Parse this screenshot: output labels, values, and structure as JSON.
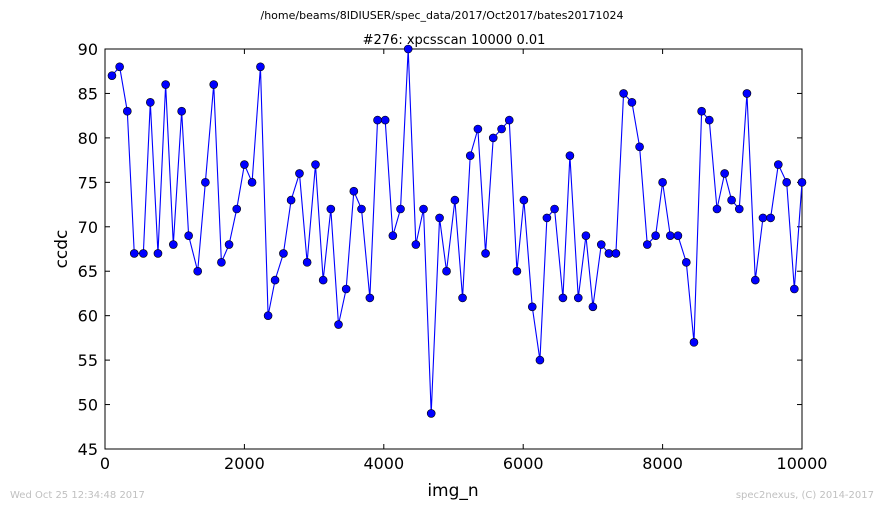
{
  "page": {
    "supertitle": "/home/beams/8IDIUSER/spec_data/2017/Oct2017/bates20171024",
    "footer_left": "Wed Oct 25 12:34:48 2017",
    "footer_right": "spec2nexus, (C) 2014-2017"
  },
  "colors": {
    "series": "#0000ff",
    "axes": "#000000",
    "footer": "#c0c0c0",
    "background": "#ffffff"
  },
  "chart_data": {
    "type": "line",
    "title": "#276: xpcsscan 10000 0.01",
    "xlabel": "img_n",
    "ylabel": "ccdc",
    "xlim": [
      0,
      10000
    ],
    "ylim": [
      45,
      90
    ],
    "xticks": [
      0,
      2000,
      4000,
      6000,
      8000,
      10000
    ],
    "yticks": [
      45,
      50,
      55,
      60,
      65,
      70,
      75,
      80,
      85,
      90
    ],
    "grid": false,
    "legend": "none",
    "markers": "circle",
    "series": [
      {
        "x": [
          100,
          210,
          320,
          420,
          550,
          650,
          760,
          870,
          980,
          1100,
          1200,
          1330,
          1440,
          1560,
          1670,
          1780,
          1890,
          2000,
          2110,
          2230,
          2340,
          2440,
          2560,
          2670,
          2790,
          2900,
          3020,
          3130,
          3240,
          3350,
          3460,
          3570,
          3680,
          3800,
          3910,
          4020,
          4130,
          4240,
          4350,
          4460,
          4570,
          4680,
          4800,
          4900,
          5020,
          5130,
          5240,
          5350,
          5460,
          5570,
          5690,
          5800,
          5910,
          6010,
          6130,
          6240,
          6340,
          6450,
          6570,
          6670,
          6790,
          6900,
          7000,
          7120,
          7230,
          7330,
          7440,
          7560,
          7670,
          7780,
          7900,
          8000,
          8110,
          8220,
          8340,
          8450,
          8560,
          8670,
          8780,
          8890,
          8990,
          9100,
          9210,
          9330,
          9440,
          9550,
          9660,
          9780,
          9890,
          10000
        ],
        "y": [
          87,
          88,
          83,
          67,
          67,
          84,
          67,
          86,
          68,
          83,
          69,
          65,
          75,
          86,
          66,
          68,
          72,
          77,
          75,
          88,
          60,
          64,
          67,
          73,
          76,
          66,
          77,
          64,
          72,
          59,
          63,
          74,
          72,
          62,
          82,
          82,
          69,
          72,
          90,
          68,
          72,
          49,
          71,
          65,
          73,
          62,
          78,
          81,
          67,
          80,
          81,
          82,
          65,
          73,
          61,
          55,
          71,
          72,
          62,
          78,
          62,
          69,
          61,
          68,
          67,
          67,
          85,
          84,
          79,
          68,
          69,
          75,
          69,
          69,
          66,
          57,
          83,
          82,
          72,
          76,
          73,
          72,
          85,
          64,
          71,
          71,
          77,
          75,
          63,
          75
        ]
      }
    ]
  }
}
